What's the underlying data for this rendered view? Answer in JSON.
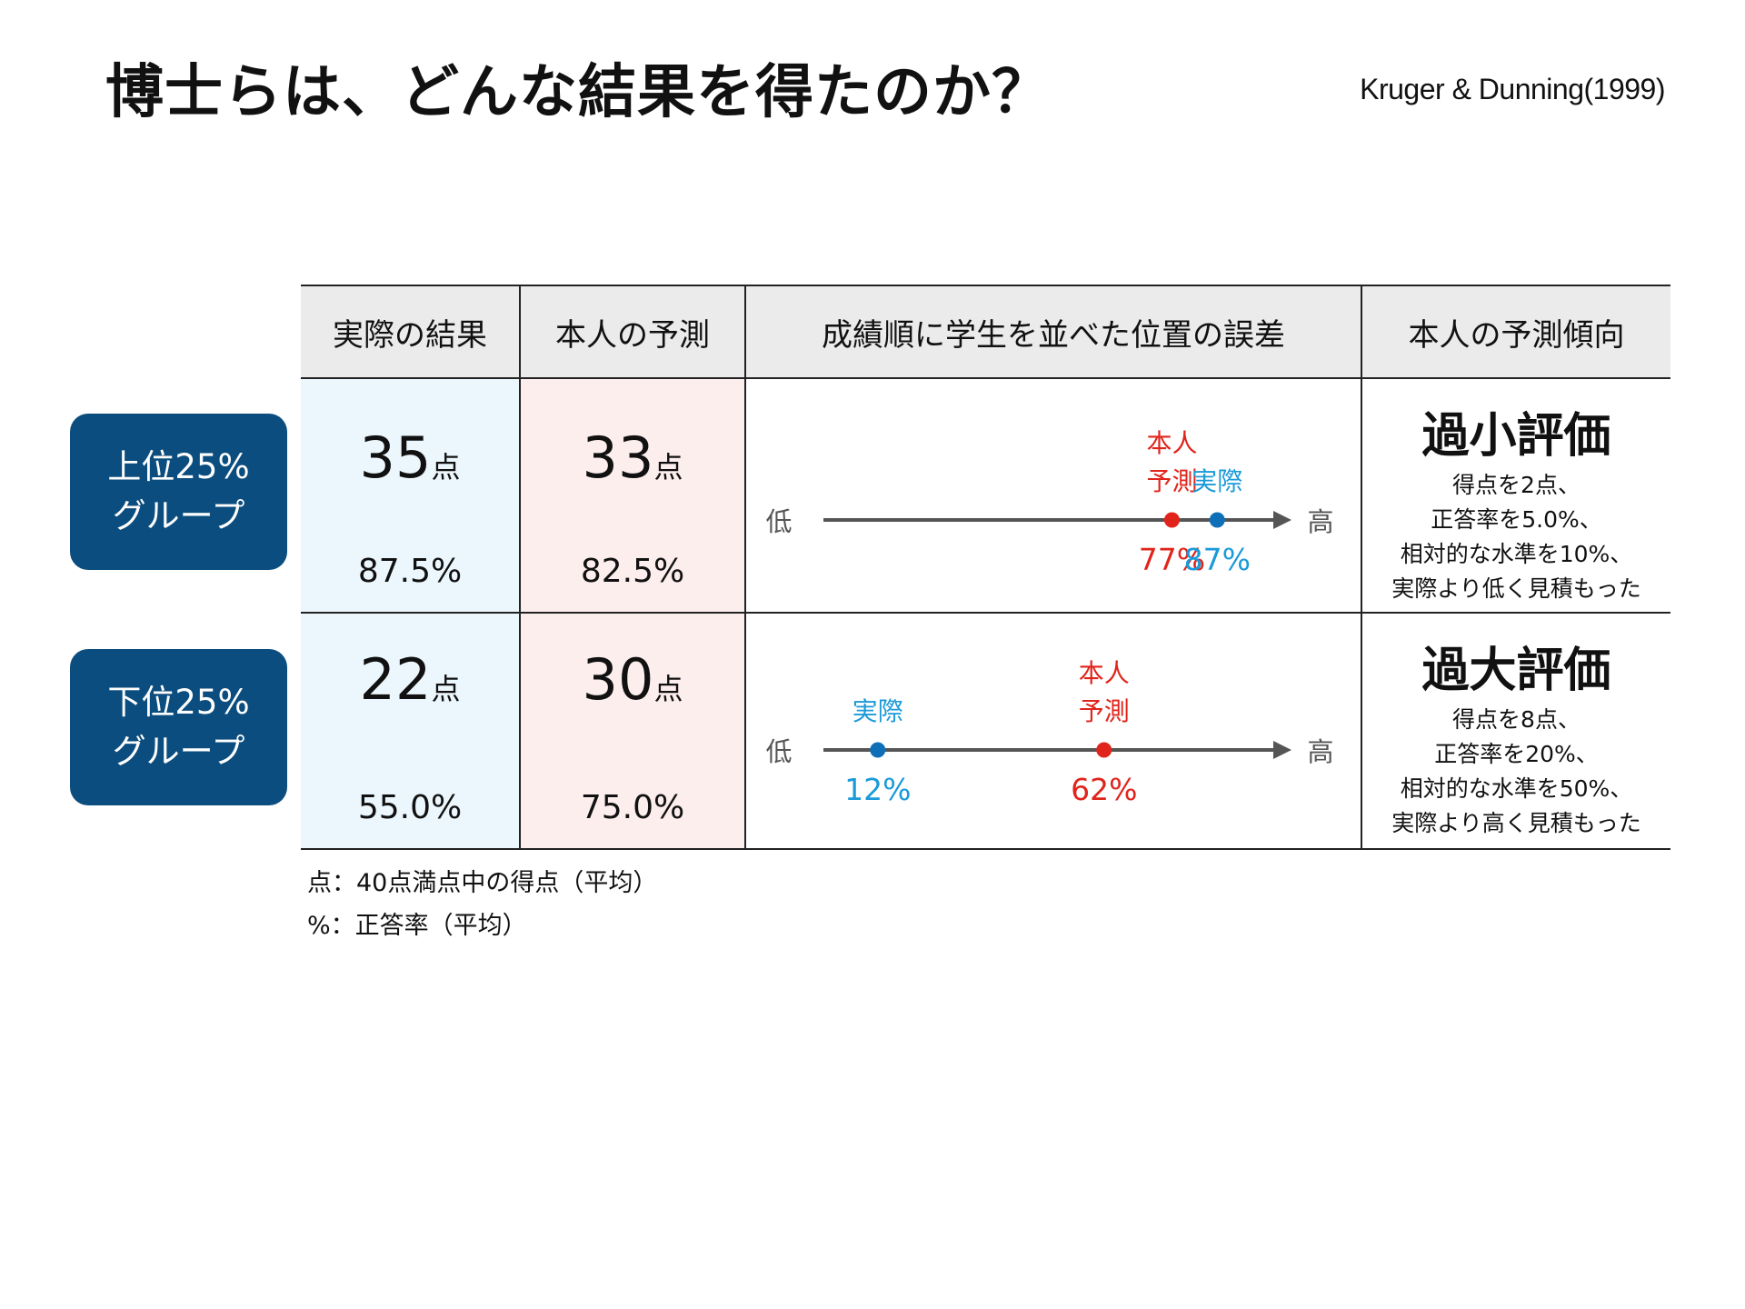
{
  "title": "博士らは、どんな結果を得たのか？",
  "citation": "Kruger & Dunning(1999)",
  "colors": {
    "group_box": "#0b4d7e",
    "actual": "#1a9ad9",
    "actual_dot": "#0e6fb8",
    "predicted": "#e0241b",
    "axis": "#555555",
    "header_bg": "#ebebeb",
    "actual_col_bg": "#ecf7fd",
    "predicted_col_bg": "#fdeeee"
  },
  "table": {
    "headers": [
      "実際の結果",
      "本人の予測",
      "成績順に学生を並べた位置の誤差",
      "本人の予測傾向"
    ],
    "rows": [
      {
        "group_line1": "上位25%",
        "group_line2": "グループ",
        "actual_score": "35",
        "actual_rate": "87.5%",
        "predicted_score": "33",
        "predicted_rate": "82.5%",
        "score_unit": "点",
        "tendency_title": "過小評価",
        "tendency_lines": [
          "得点を2点、",
          "正答率を5.0%、",
          "相対的な水準を10%、",
          "実際より低く見積もった"
        ]
      },
      {
        "group_line1": "下位25%",
        "group_line2": "グループ",
        "actual_score": "22",
        "actual_rate": "55.0%",
        "predicted_score": "30",
        "predicted_rate": "75.0%",
        "score_unit": "点",
        "tendency_title": "過大評価",
        "tendency_lines": [
          "得点を8点、",
          "正答率を20%、",
          "相対的な水準を50%、",
          "実際より高く見積もった"
        ]
      }
    ]
  },
  "chart_data": {
    "type": "scatter",
    "title": "成績順に学生を並べた位置の誤差",
    "axis_low_label": "低",
    "axis_high_label": "高",
    "xlim": [
      0,
      100
    ],
    "unit": "%",
    "rows": [
      {
        "group": "上位25%グループ",
        "points": [
          {
            "name": "本人予測",
            "label_line1": "本人",
            "label_line2": "予測",
            "value": 77,
            "value_label": "77%",
            "series": "predicted"
          },
          {
            "name": "実際",
            "label_line1": "",
            "label_line2": "実際",
            "value": 87,
            "value_label": "87%",
            "series": "actual"
          }
        ]
      },
      {
        "group": "下位25%グループ",
        "points": [
          {
            "name": "実際",
            "label_line1": "",
            "label_line2": "実際",
            "value": 12,
            "value_label": "12%",
            "series": "actual"
          },
          {
            "name": "本人予測",
            "label_line1": "本人",
            "label_line2": "予測",
            "value": 62,
            "value_label": "62%",
            "series": "predicted"
          }
        ]
      }
    ]
  },
  "notes": [
    "点：40点満点中の得点（平均）",
    "%：正答率（平均）"
  ]
}
